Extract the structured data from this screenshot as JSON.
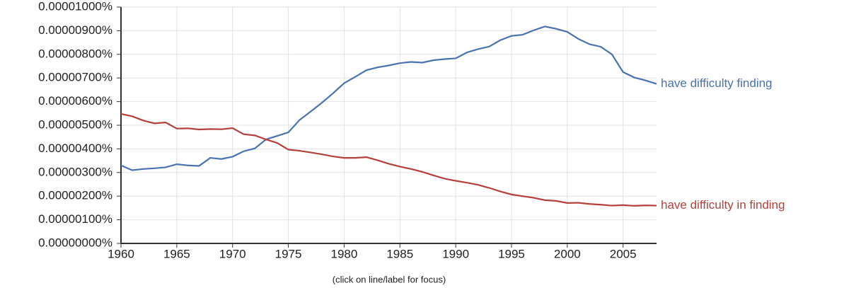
{
  "chart_data": {
    "type": "line",
    "note": "(click on line/label for focus)",
    "x": [
      1960,
      1961,
      1962,
      1963,
      1964,
      1965,
      1966,
      1967,
      1968,
      1969,
      1970,
      1971,
      1972,
      1973,
      1974,
      1975,
      1976,
      1977,
      1978,
      1979,
      1980,
      1981,
      1982,
      1983,
      1984,
      1985,
      1986,
      1987,
      1988,
      1989,
      1990,
      1991,
      1992,
      1993,
      1994,
      1995,
      1996,
      1997,
      1998,
      1999,
      2000,
      2001,
      2002,
      2003,
      2004,
      2005,
      2006,
      2007,
      2008
    ],
    "series": [
      {
        "name": "have difficulty finding",
        "color": "#4a72b0",
        "values": [
          3.3e-06,
          3.1e-06,
          3.15e-06,
          3.18e-06,
          3.22e-06,
          3.35e-06,
          3.3e-06,
          3.28e-06,
          3.62e-06,
          3.57e-06,
          3.67e-06,
          3.9e-06,
          4.02e-06,
          4.4e-06,
          4.55e-06,
          4.7e-06,
          5.22e-06,
          5.58e-06,
          5.95e-06,
          6.35e-06,
          6.78e-06,
          7.05e-06,
          7.33e-06,
          7.45e-06,
          7.53e-06,
          7.63e-06,
          7.68e-06,
          7.65e-06,
          7.75e-06,
          7.8e-06,
          7.83e-06,
          8.08e-06,
          8.22e-06,
          8.33e-06,
          8.6e-06,
          8.78e-06,
          8.83e-06,
          9.02e-06,
          9.18e-06,
          9.08e-06,
          8.95e-06,
          8.65e-06,
          8.43e-06,
          8.32e-06,
          8e-06,
          7.25e-06,
          7.02e-06,
          6.9e-06,
          6.75e-06
        ]
      },
      {
        "name": "have difficulty in finding",
        "color": "#b5403a",
        "values": [
          5.48e-06,
          5.38e-06,
          5.2e-06,
          5.08e-06,
          5.12e-06,
          4.86e-06,
          4.87e-06,
          4.82e-06,
          4.84e-06,
          4.83e-06,
          4.88e-06,
          4.62e-06,
          4.57e-06,
          4.4e-06,
          4.25e-06,
          3.97e-06,
          3.92e-06,
          3.85e-06,
          3.77e-06,
          3.68e-06,
          3.62e-06,
          3.62e-06,
          3.65e-06,
          3.52e-06,
          3.37e-06,
          3.25e-06,
          3.15e-06,
          3.03e-06,
          2.88e-06,
          2.74e-06,
          2.65e-06,
          2.57e-06,
          2.48e-06,
          2.35e-06,
          2.2e-06,
          2.07e-06,
          2e-06,
          1.93e-06,
          1.83e-06,
          1.8e-06,
          1.71e-06,
          1.72e-06,
          1.67e-06,
          1.64e-06,
          1.6e-06,
          1.62e-06,
          1.59e-06,
          1.61e-06,
          1.6e-06
        ]
      }
    ],
    "xlim": [
      1960,
      2008
    ],
    "xticks": [
      1960,
      1965,
      1970,
      1975,
      1980,
      1985,
      1990,
      1995,
      2000,
      2005
    ],
    "ylim": [
      0,
      1e-05
    ],
    "yticks": [
      {
        "value": 0,
        "label": "0.00000000%"
      },
      {
        "value": 1e-06,
        "label": "0.00000100%"
      },
      {
        "value": 2e-06,
        "label": "0.00000200%"
      },
      {
        "value": 3e-06,
        "label": "0.00000300%"
      },
      {
        "value": 4e-06,
        "label": "0.00000400%"
      },
      {
        "value": 5e-06,
        "label": "0.00000500%"
      },
      {
        "value": 6e-06,
        "label": "0.00000600%"
      },
      {
        "value": 7e-06,
        "label": "0.00000700%"
      },
      {
        "value": 8e-06,
        "label": "0.00000800%"
      },
      {
        "value": 9e-06,
        "label": "0.00000900%"
      },
      {
        "value": 1e-05,
        "label": "0.00001000%"
      }
    ],
    "grid": true
  }
}
